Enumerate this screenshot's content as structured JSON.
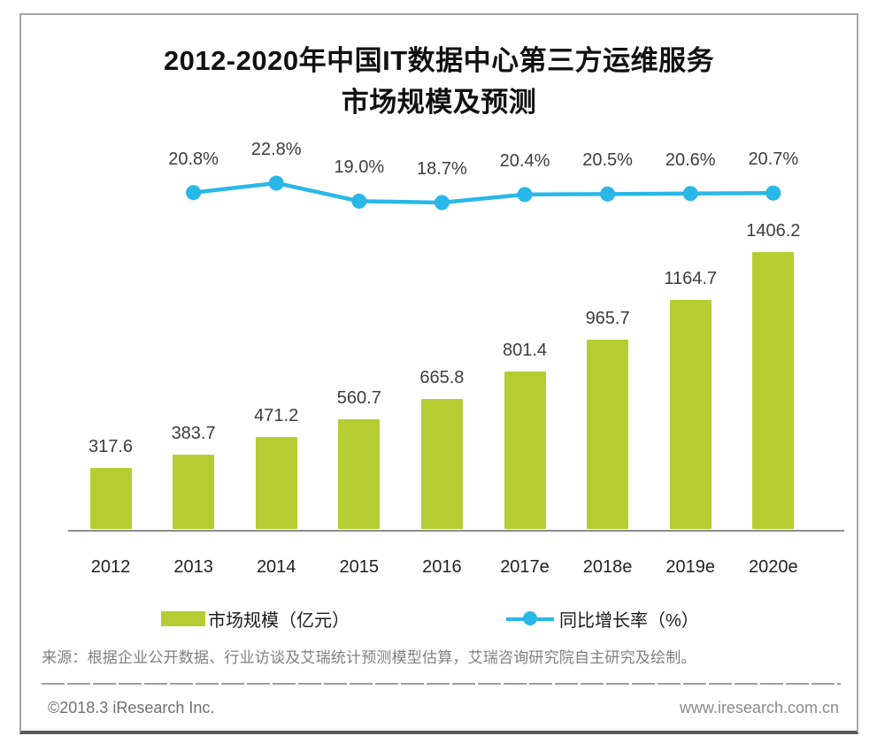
{
  "title": {
    "line1": "2012-2020年中国IT数据中心第三方运维服务",
    "line2": "市场规模及预测"
  },
  "chart_data": {
    "type": "bar",
    "subtype": "bar-line-combo",
    "title": "2012-2020年中国IT数据中心第三方运维服务市场规模及预测",
    "categories": [
      "2012",
      "2013",
      "2014",
      "2015",
      "2016",
      "2017e",
      "2018e",
      "2019e",
      "2020e"
    ],
    "series": [
      {
        "name": "市场规模（亿元）",
        "type": "bar",
        "color": "#b5cd33",
        "values": [
          317.6,
          383.7,
          471.2,
          560.7,
          665.8,
          801.4,
          965.7,
          1164.7,
          1406.2
        ]
      },
      {
        "name": "同比增长率（%）",
        "type": "line",
        "color": "#29b7e8",
        "values": [
          null,
          20.8,
          22.8,
          19.0,
          18.7,
          20.4,
          20.5,
          20.6,
          20.7
        ]
      }
    ],
    "xlabel": "",
    "ylabel": "",
    "grid": false,
    "data_labels": true,
    "legend_position": "bottom"
  },
  "legend": {
    "market_size": "市场规模（亿元）",
    "growth_rate": "同比增长率（%）"
  },
  "source_note": "来源：根据企业公开数据、行业访谈及艾瑞统计预测模型估算，艾瑞咨询研究院自主研究及绘制。",
  "footer": {
    "copyright": "©2018.3 iResearch Inc.",
    "website": "www.iresearch.com.cn"
  },
  "colors": {
    "bar": "#b5cd33",
    "line": "#29b7e8",
    "axis": "#8c8c8c"
  }
}
